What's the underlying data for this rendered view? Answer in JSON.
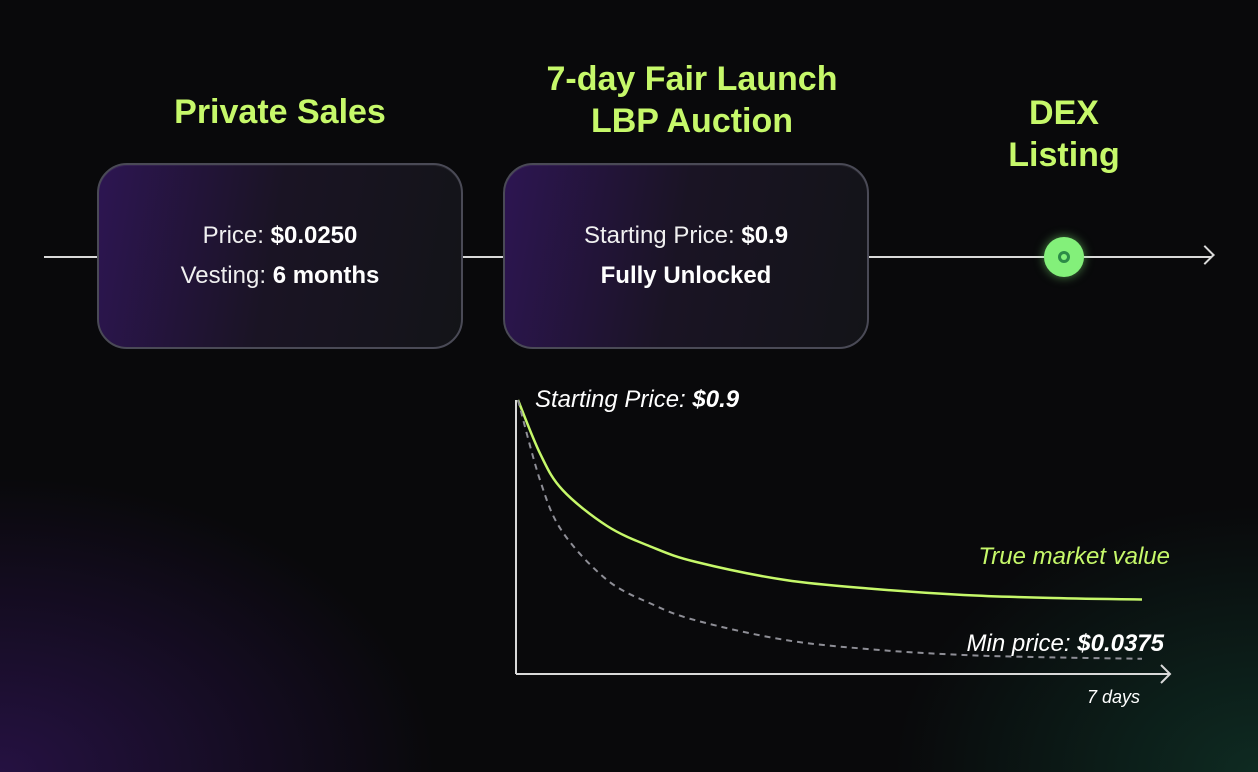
{
  "stages": {
    "private_sales": {
      "title": "Private Sales",
      "price_label": "Price:",
      "price_value": "$0.0250",
      "vesting_label": "Vesting:",
      "vesting_value": "6 months"
    },
    "lbp_auction": {
      "title_line1": "7-day Fair Launch",
      "title_line2": "LBP Auction",
      "price_label": "Starting Price:",
      "price_value": "$0.9",
      "unlock_text": "Fully Unlocked"
    },
    "dex_listing": {
      "title_line1": "DEX",
      "title_line2": "Listing"
    }
  },
  "chart_data": {
    "type": "line",
    "start_price_label": "Starting Price:",
    "start_price_value": "$0.9",
    "min_price_label": "Min price:",
    "min_price_value": "$0.0375",
    "x_end_label": "7 days",
    "start_price": 0.9,
    "min_price": 0.0375,
    "series": [
      {
        "name": "True market value",
        "style": "solid",
        "color": "#c6f86a",
        "x": [
          0,
          0.25,
          0.5,
          1,
          1.5,
          2,
          3,
          4,
          5,
          6,
          7
        ],
        "y": [
          0.9,
          0.72,
          0.6,
          0.48,
          0.41,
          0.36,
          0.3,
          0.27,
          0.25,
          0.24,
          0.235
        ]
      },
      {
        "name": "",
        "style": "dashed",
        "color": "#8e8e96",
        "x": [
          0,
          0.25,
          0.5,
          1,
          1.5,
          2,
          3,
          4,
          5,
          6,
          7
        ],
        "y": [
          0.9,
          0.63,
          0.46,
          0.3,
          0.22,
          0.165,
          0.1,
          0.068,
          0.05,
          0.042,
          0.0375
        ]
      }
    ],
    "xlim": [
      0,
      7
    ],
    "ylim": [
      0,
      0.9
    ],
    "grid": false
  }
}
